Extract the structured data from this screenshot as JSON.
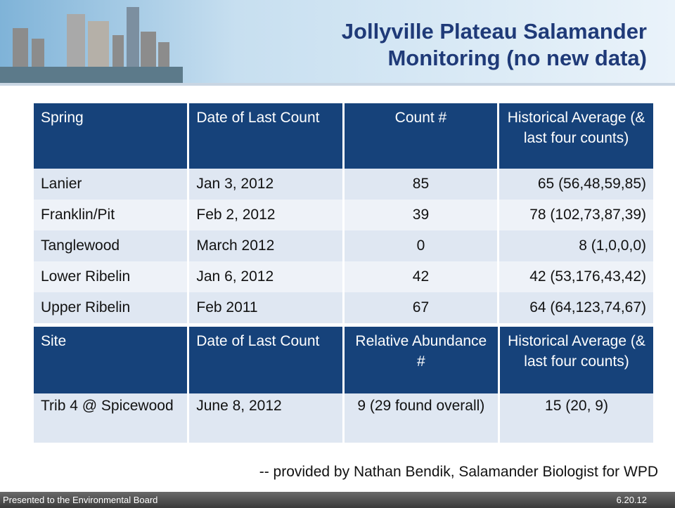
{
  "header": {
    "title": "Jollyville Plateau Salamander Monitoring (no new data)"
  },
  "tables": [
    {
      "header": [
        "Spring",
        "Date of Last Count",
        "Count #",
        "Historical Average (& last four counts)"
      ],
      "rows": [
        [
          "Lanier",
          "Jan 3, 2012",
          "85",
          "65 (56,48,59,85)"
        ],
        [
          "Franklin/Pit",
          "Feb 2, 2012",
          "39",
          "78 (102,73,87,39)"
        ],
        [
          "Tanglewood",
          "March 2012",
          "0",
          "8 (1,0,0,0)"
        ],
        [
          "Lower Ribelin",
          "Jan 6, 2012",
          "42",
          "42 (53,176,43,42)"
        ],
        [
          "Upper Ribelin",
          "Feb 2011",
          "67",
          "64 (64,123,74,67)"
        ]
      ]
    },
    {
      "header": [
        "Site",
        "Date of Last Count",
        "Relative Abundance #",
        "Historical Average (& last four counts)"
      ],
      "rows": [
        [
          "Trib 4 @ Spicewood",
          "June 8, 2012",
          "9 (29 found overall)",
          "15 (20, 9)"
        ]
      ]
    }
  ],
  "credit": "-- provided by Nathan Bendik, Salamander Biologist for WPD",
  "footer": {
    "left": "Presented to the Environmental Board",
    "right": "6.20.12"
  }
}
